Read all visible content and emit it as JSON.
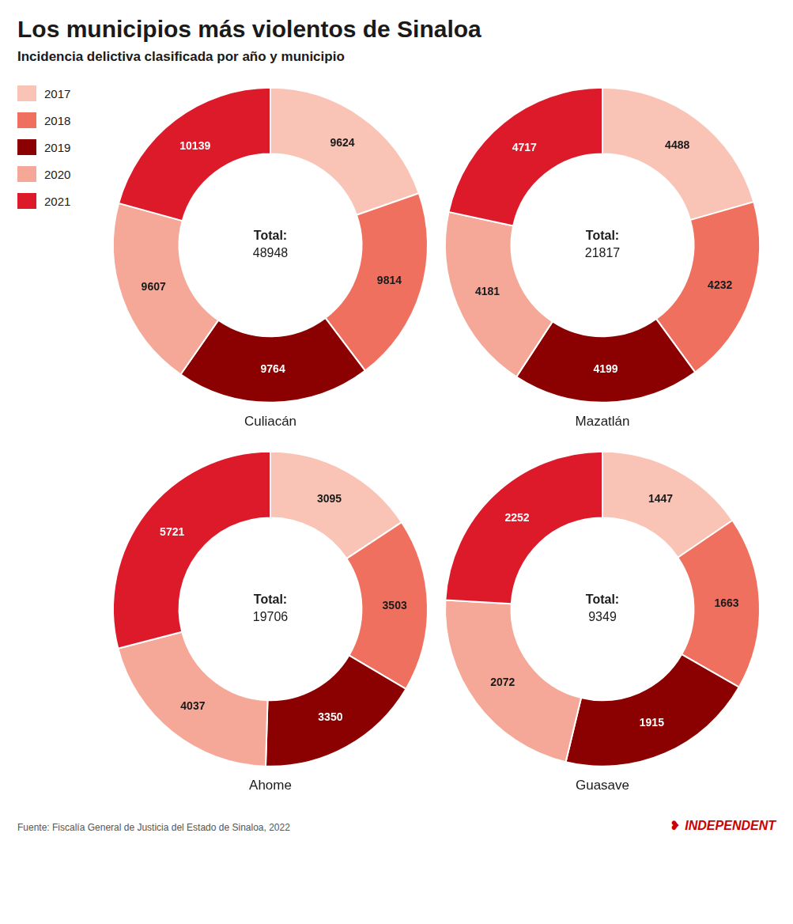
{
  "title": "Los municipios más violentos de Sinaloa",
  "subtitle": "Incidencia delictiva clasificada por año y municipio",
  "source": "Fuente: Fiscalía General de Justicia del Estado de Sinaloa, 2022",
  "legend": "upper left",
  "annotations": [
    {
      "text": "❥",
      "color": "#cc0000"
    },
    {
      "text": "INDEPENDENT",
      "color": "#cc0000"
    }
  ],
  "chart_data": [
    {
      "type": "doughnut",
      "title": "Culiacán",
      "categories": [
        "2017",
        "2018",
        "2019",
        "2020",
        "2021"
      ],
      "values": [
        9624,
        9814,
        9764,
        9607,
        10139
      ],
      "colors": [
        "#f9c4b5",
        "#f07060",
        "#8b0000",
        "#f5a898",
        "#dd1a2a"
      ],
      "annotations": [
        "Total:"
      ],
      "total": 48948,
      "data_labels": true
    },
    {
      "type": "doughnut",
      "title": "Mazatlán",
      "categories": [
        "2017",
        "2018",
        "2019",
        "2020",
        "2021"
      ],
      "values": [
        4488,
        4232,
        4199,
        4181,
        4717
      ],
      "colors": [
        "#f9c4b5",
        "#f07060",
        "#8b0000",
        "#f5a898",
        "#dd1a2a"
      ],
      "annotations": [
        "Total:"
      ],
      "total": 21817,
      "data_labels": true
    },
    {
      "type": "doughnut",
      "title": "Ahome",
      "categories": [
        "2017",
        "2018",
        "2019",
        "2020",
        "2021"
      ],
      "values": [
        3095,
        3503,
        3350,
        4037,
        5721
      ],
      "colors": [
        "#f9c4b5",
        "#f07060",
        "#8b0000",
        "#f5a898",
        "#dd1a2a"
      ],
      "annotations": [
        "Total:"
      ],
      "total": 19706,
      "data_labels": true
    },
    {
      "type": "doughnut",
      "title": "Guasave",
      "categories": [
        "2017",
        "2018",
        "2019",
        "2020",
        "2021"
      ],
      "values": [
        1447,
        1663,
        1915,
        2072,
        2252
      ],
      "colors": [
        "#f9c4b5",
        "#f07060",
        "#8b0000",
        "#f5a898",
        "#dd1a2a"
      ],
      "annotations": [
        "Total:"
      ],
      "total": 9349,
      "data_labels": true
    }
  ]
}
